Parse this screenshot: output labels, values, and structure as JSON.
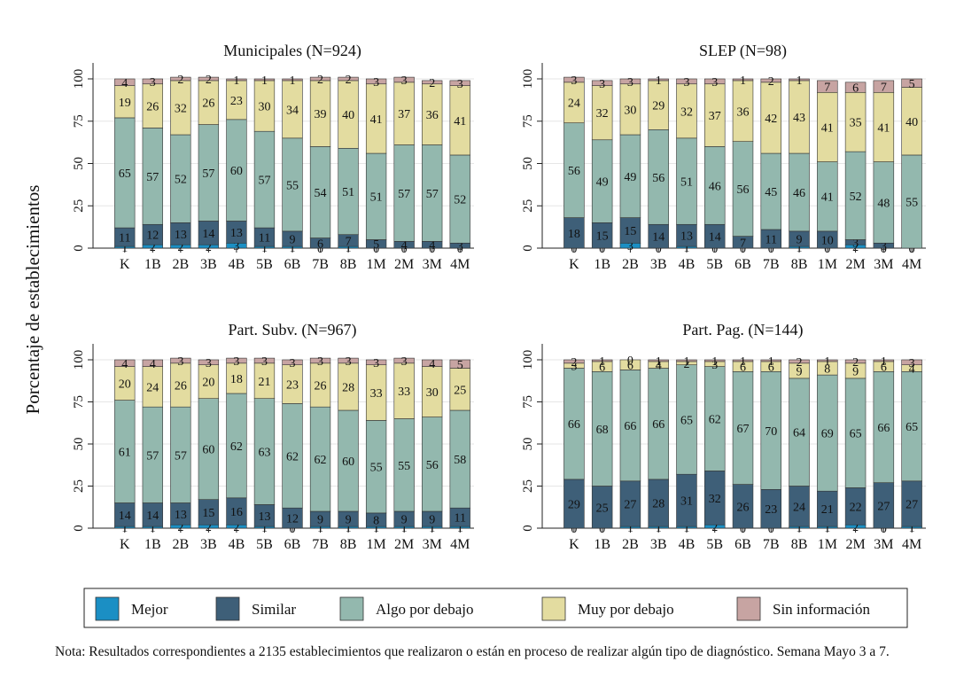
{
  "y_axis_label": "Porcentaje de establecimientos",
  "note": "Nota: Resultados correspondientes a 2135 establecimientos que realizaron o están en proceso de realizar algún tipo de diagnóstico. Semana Mayo 3 a 7.",
  "legend": [
    {
      "key": "mejor",
      "label": "Mejor",
      "color": "#1b8fc4"
    },
    {
      "key": "similar",
      "label": "Similar",
      "color": "#3e5f78"
    },
    {
      "key": "algo",
      "label": "Algo por debajo",
      "color": "#93b8ae"
    },
    {
      "key": "muy",
      "label": "Muy por debajo",
      "color": "#e3dca0"
    },
    {
      "key": "sin",
      "label": "Sin información",
      "color": "#c7a4a2"
    }
  ],
  "chart_data": [
    {
      "type": "bar",
      "stacked": true,
      "title": "Municipales (N=924)",
      "categories": [
        "K",
        "1B",
        "2B",
        "3B",
        "4B",
        "5B",
        "6B",
        "7B",
        "8B",
        "1M",
        "2M",
        "3M",
        "4M"
      ],
      "ylim": [
        0,
        100
      ],
      "yticks": [
        0,
        25,
        50,
        75,
        100
      ],
      "grid": true,
      "series": [
        {
          "name": "Mejor",
          "values": [
            1,
            2,
            2,
            2,
            3,
            1,
            1,
            0,
            1,
            0,
            0,
            0,
            0
          ]
        },
        {
          "name": "Similar",
          "values": [
            11,
            12,
            13,
            14,
            13,
            11,
            9,
            6,
            7,
            5,
            4,
            4,
            3
          ]
        },
        {
          "name": "Algo por debajo",
          "values": [
            65,
            57,
            52,
            57,
            60,
            57,
            55,
            54,
            51,
            51,
            57,
            57,
            52
          ]
        },
        {
          "name": "Muy por debajo",
          "values": [
            19,
            26,
            32,
            26,
            23,
            30,
            34,
            39,
            40,
            41,
            37,
            36,
            41
          ]
        },
        {
          "name": "Sin información",
          "values": [
            4,
            3,
            2,
            2,
            1,
            1,
            1,
            2,
            2,
            3,
            3,
            2,
            3
          ]
        }
      ]
    },
    {
      "type": "bar",
      "stacked": true,
      "title": "SLEP (N=98)",
      "categories": [
        "K",
        "1B",
        "2B",
        "3B",
        "4B",
        "5B",
        "6B",
        "7B",
        "8B",
        "1M",
        "2M",
        "3M",
        "4M"
      ],
      "ylim": [
        0,
        100
      ],
      "yticks": [
        0,
        25,
        50,
        75,
        100
      ],
      "grid": true,
      "series": [
        {
          "name": "Mejor",
          "values": [
            0,
            0,
            3,
            0,
            1,
            0,
            0,
            0,
            1,
            0,
            2,
            0,
            0
          ]
        },
        {
          "name": "Similar",
          "values": [
            18,
            15,
            15,
            14,
            13,
            14,
            7,
            11,
            9,
            10,
            3,
            3,
            0
          ]
        },
        {
          "name": "Algo por debajo",
          "values": [
            56,
            49,
            49,
            56,
            51,
            46,
            56,
            45,
            46,
            41,
            52,
            48,
            55
          ]
        },
        {
          "name": "Muy por debajo",
          "values": [
            24,
            32,
            30,
            29,
            32,
            37,
            36,
            42,
            43,
            41,
            35,
            41,
            40
          ]
        },
        {
          "name": "Sin información",
          "values": [
            3,
            3,
            3,
            1,
            3,
            3,
            1,
            2,
            1,
            7,
            6,
            7,
            5
          ]
        }
      ]
    },
    {
      "type": "bar",
      "stacked": true,
      "title": "Part. Subv. (N=967)",
      "categories": [
        "K",
        "1B",
        "2B",
        "3B",
        "4B",
        "5B",
        "6B",
        "7B",
        "8B",
        "1M",
        "2M",
        "3M",
        "4M"
      ],
      "ylim": [
        0,
        100
      ],
      "yticks": [
        0,
        25,
        50,
        75,
        100
      ],
      "grid": true,
      "series": [
        {
          "name": "Mejor",
          "values": [
            1,
            1,
            2,
            2,
            2,
            1,
            0,
            1,
            1,
            1,
            1,
            1,
            1
          ]
        },
        {
          "name": "Similar",
          "values": [
            14,
            14,
            13,
            15,
            16,
            13,
            12,
            9,
            9,
            8,
            9,
            9,
            11
          ]
        },
        {
          "name": "Algo por debajo",
          "values": [
            61,
            57,
            57,
            60,
            62,
            63,
            62,
            62,
            60,
            55,
            55,
            56,
            58
          ]
        },
        {
          "name": "Muy por debajo",
          "values": [
            20,
            24,
            26,
            20,
            18,
            21,
            23,
            26,
            28,
            33,
            33,
            30,
            25
          ]
        },
        {
          "name": "Sin información",
          "values": [
            4,
            4,
            3,
            3,
            3,
            3,
            3,
            3,
            3,
            3,
            3,
            4,
            5
          ]
        }
      ]
    },
    {
      "type": "bar",
      "stacked": true,
      "title": "Part. Pag. (N=144)",
      "categories": [
        "K",
        "1B",
        "2B",
        "3B",
        "4B",
        "5B",
        "6B",
        "7B",
        "8B",
        "1M",
        "2M",
        "3M",
        "4M"
      ],
      "ylim": [
        0,
        100
      ],
      "yticks": [
        0,
        25,
        50,
        75,
        100
      ],
      "grid": true,
      "series": [
        {
          "name": "Mejor",
          "values": [
            0,
            0,
            1,
            1,
            1,
            2,
            0,
            0,
            1,
            1,
            2,
            0,
            1
          ]
        },
        {
          "name": "Similar",
          "values": [
            29,
            25,
            27,
            28,
            31,
            32,
            26,
            23,
            24,
            21,
            22,
            27,
            27
          ]
        },
        {
          "name": "Algo por debajo",
          "values": [
            66,
            68,
            66,
            66,
            65,
            62,
            67,
            70,
            64,
            69,
            65,
            66,
            65
          ]
        },
        {
          "name": "Muy por debajo",
          "values": [
            3,
            6,
            6,
            4,
            2,
            3,
            6,
            6,
            9,
            8,
            9,
            6,
            4
          ]
        },
        {
          "name": "Sin información",
          "values": [
            2,
            1,
            0,
            1,
            1,
            1,
            1,
            1,
            2,
            1,
            2,
            1,
            3
          ]
        }
      ]
    }
  ]
}
